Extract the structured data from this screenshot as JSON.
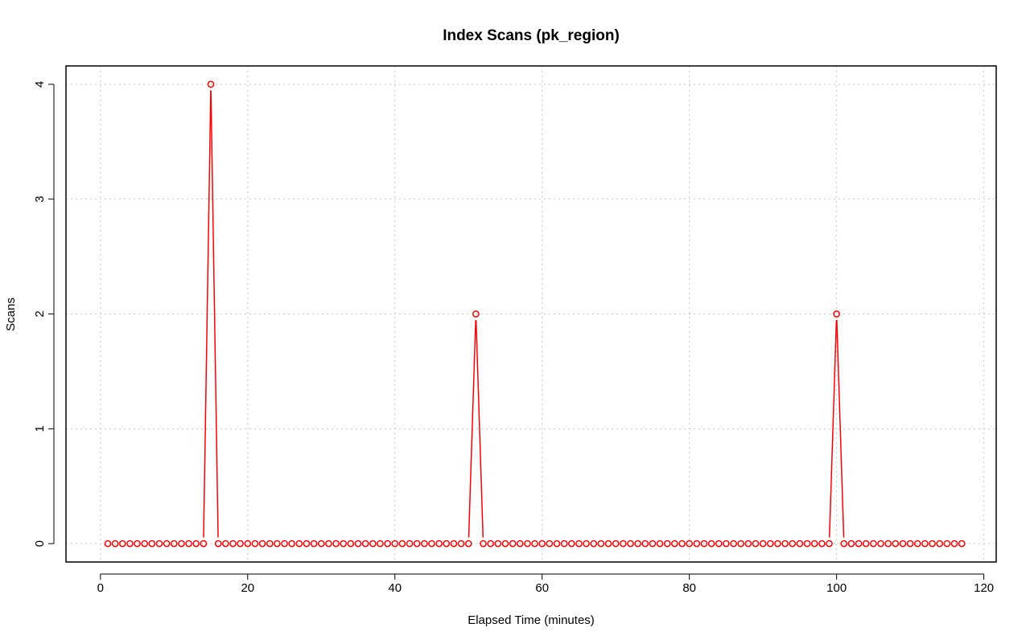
{
  "chart_data": {
    "type": "line",
    "title": "Index Scans (pk_region)",
    "xlabel": "Elapsed Time (minutes)",
    "ylabel": "Scans",
    "xlim": [
      -4.68,
      121.68
    ],
    "ylim": [
      -0.16,
      4.16
    ],
    "xticks": [
      0,
      20,
      40,
      60,
      80,
      100,
      120
    ],
    "yticks": [
      0,
      1,
      2,
      3,
      4
    ],
    "grid": true,
    "x_start": 1,
    "x_end": 117,
    "spikes": [
      {
        "x": 15,
        "y": 4
      },
      {
        "x": 51,
        "y": 2
      },
      {
        "x": 100,
        "y": 2
      }
    ],
    "baseline_value": 0,
    "series": [
      {
        "color": "#ff0000",
        "marker": "open-circle",
        "style": "overplotted"
      }
    ]
  }
}
